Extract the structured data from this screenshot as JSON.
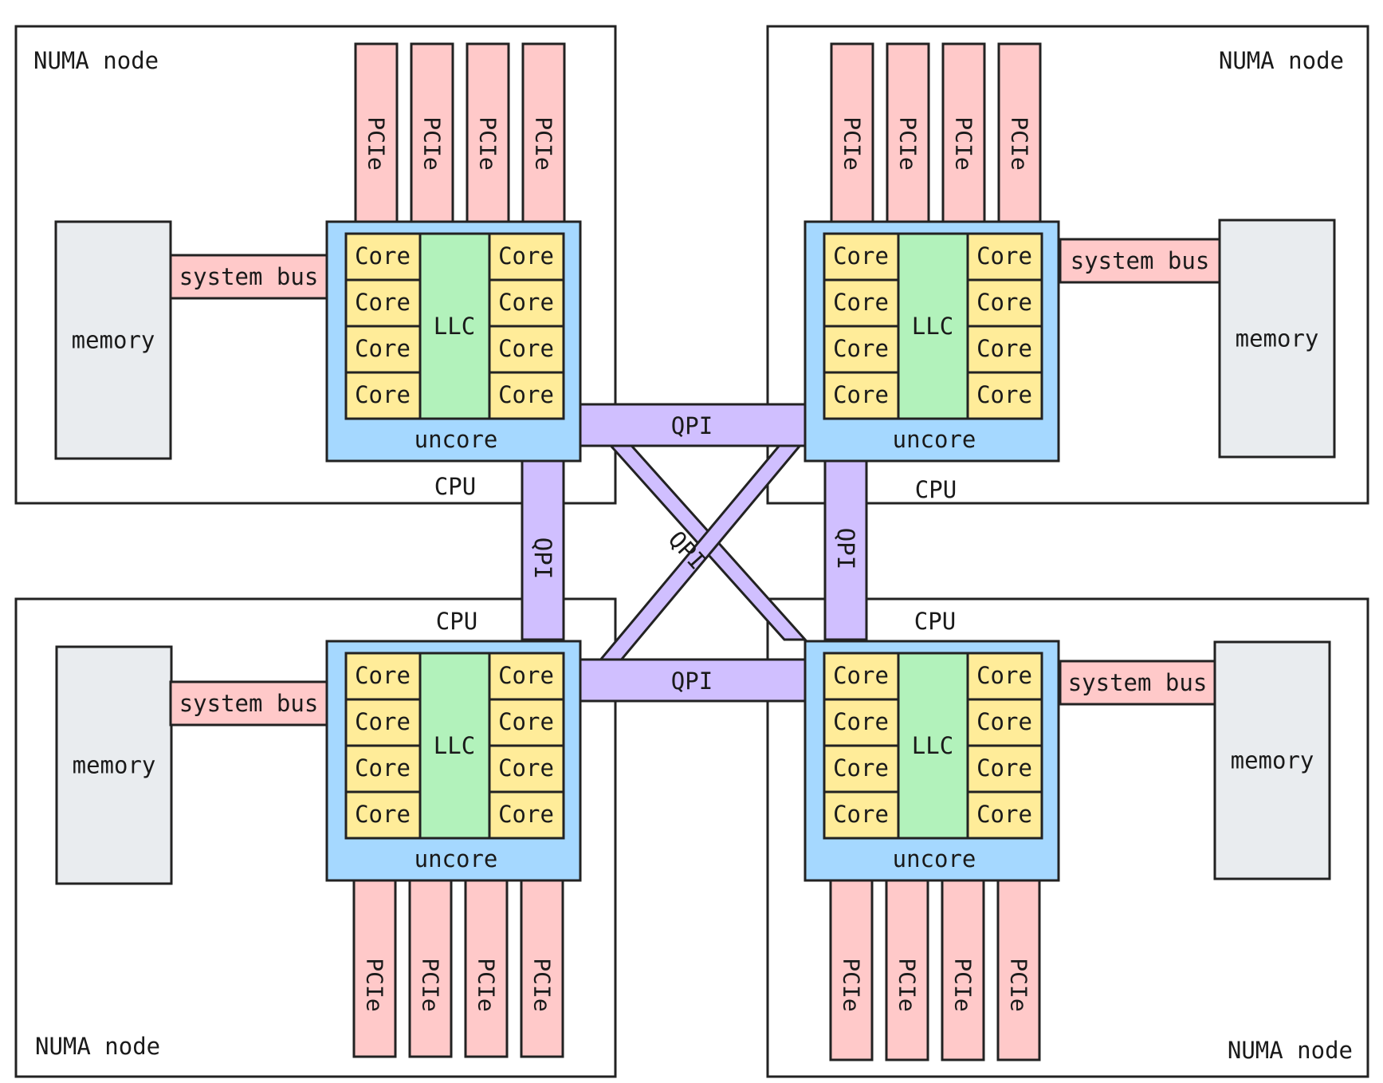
{
  "diagram": {
    "nodes": [
      {
        "label": "NUMA node",
        "cpu_label": "CPU",
        "memory_label": "memory",
        "bus_label": "system bus",
        "llc_label": "LLC",
        "uncore_label": "uncore",
        "core_label": "Core",
        "pcie_label": "PCIe"
      },
      {
        "label": "NUMA node",
        "cpu_label": "CPU",
        "memory_label": "memory",
        "bus_label": "system bus",
        "llc_label": "LLC",
        "uncore_label": "uncore",
        "core_label": "Core",
        "pcie_label": "PCIe"
      },
      {
        "label": "NUMA node",
        "cpu_label": "CPU",
        "memory_label": "memory",
        "bus_label": "system bus",
        "llc_label": "LLC",
        "uncore_label": "uncore",
        "core_label": "Core",
        "pcie_label": "PCIe"
      },
      {
        "label": "NUMA node",
        "cpu_label": "CPU",
        "memory_label": "memory",
        "bus_label": "system bus",
        "llc_label": "LLC",
        "uncore_label": "uncore",
        "core_label": "Core",
        "pcie_label": "PCIe"
      }
    ],
    "interconnect_label": "QPI",
    "colors": {
      "pcie": "#ffc9c9",
      "memory": "#e9ecef",
      "uncore": "#a5d8ff",
      "core": "#ffec99",
      "llc": "#b2f2bb",
      "qpi": "#d0bfff",
      "border": "#222222"
    }
  }
}
